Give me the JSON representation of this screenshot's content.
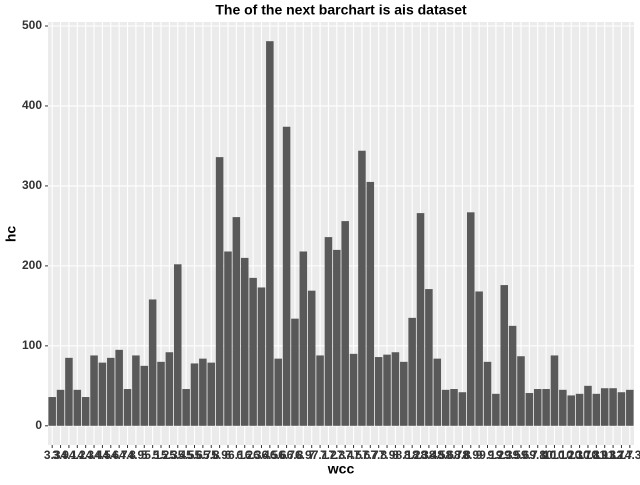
{
  "chart_data": {
    "type": "bar",
    "title": "The of the next barchart is ais dataset",
    "x_label": "wcc",
    "y_label": "hc",
    "categories": [
      "3.3",
      "3.9",
      "4.1",
      "4.2",
      "4.3",
      "4.4",
      "4.5",
      "4.6",
      "4.7",
      "4.8",
      "4.9",
      "5",
      "5.1",
      "5.2",
      "5.3",
      "5.4",
      "5.5",
      "5.6",
      "5.7",
      "5.8",
      "5.9",
      "6",
      "6.1",
      "6.2",
      "6.3",
      "6.4",
      "6.5",
      "6.6",
      "6.7",
      "6.8",
      "6.9",
      "7",
      "7.1",
      "7.2",
      "7.3",
      "7.4",
      "7.5",
      "7.6",
      "7.7",
      "7.8",
      "7.9",
      "8",
      "8.1",
      "8.2",
      "8.3",
      "8.4",
      "8.5",
      "8.6",
      "8.7",
      "8.8",
      "8.9",
      "9",
      "9.1",
      "9.2",
      "9.3",
      "9.5",
      "9.6",
      "9.7",
      "9.8",
      "10",
      "10.1",
      "10.2",
      "10.3",
      "10.7",
      "10.8",
      "10.9",
      "11.3",
      "11.7",
      "12.7",
      "14.3"
    ],
    "values": [
      36,
      45,
      85,
      45,
      36,
      88,
      79,
      85,
      95,
      46,
      88,
      75,
      158,
      80,
      92,
      202,
      46,
      78,
      84,
      79,
      336,
      218,
      261,
      210,
      185,
      173,
      481,
      84,
      374,
      134,
      218,
      169,
      88,
      236,
      220,
      256,
      90,
      344,
      305,
      86,
      89,
      92,
      80,
      135,
      266,
      171,
      84,
      45,
      46,
      42,
      267,
      168,
      80,
      40,
      176,
      125,
      87,
      41,
      46,
      46,
      88,
      45,
      38,
      40,
      50,
      40,
      47,
      47,
      42,
      45
    ],
    "color": "#595959",
    "ylim": [
      -24,
      505
    ],
    "yticks": [
      0,
      100,
      200,
      300,
      400,
      500
    ],
    "grid": true
  }
}
